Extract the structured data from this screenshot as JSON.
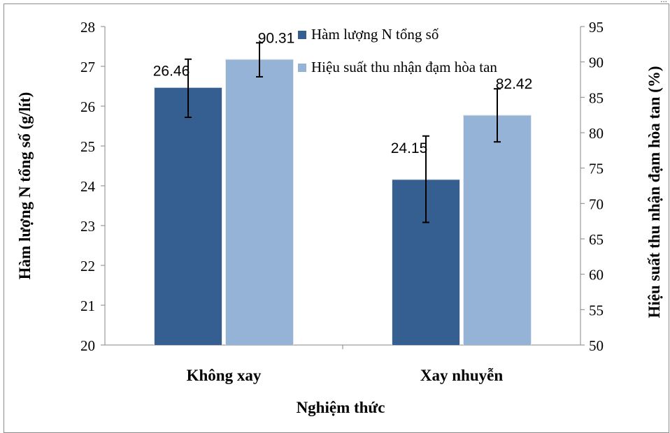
{
  "header_note": "...",
  "chart_data": {
    "type": "bar",
    "xlabel": "Nghiệm thức",
    "categories": [
      "Không xay",
      "Xay nhuyễn"
    ],
    "y_left": {
      "label": "Hàm lượng N tổng số (g/lít)",
      "lim": [
        20,
        28
      ],
      "ticks": [
        "20",
        "21",
        "22",
        "23",
        "24",
        "25",
        "26",
        "27",
        "28"
      ]
    },
    "y_right": {
      "label": "Hiệu suất thu nhận đạm hòa tan (%)",
      "lim": [
        50,
        95
      ],
      "ticks": [
        "50",
        "55",
        "60",
        "65",
        "70",
        "75",
        "80",
        "85",
        "90",
        "95"
      ]
    },
    "series": [
      {
        "name": "Hàm lượng N tổng số",
        "axis": "left",
        "color": "#365f91",
        "values": [
          26.46,
          24.15
        ],
        "value_labels": [
          "26.46",
          "24.15"
        ],
        "error_low": [
          25.72,
          23.08
        ],
        "error_high": [
          27.18,
          25.25
        ]
      },
      {
        "name": "Hiệu suất thu nhận đạm hòa tan",
        "axis": "right",
        "color": "#95b3d7",
        "values": [
          90.31,
          82.42
        ],
        "value_labels": [
          "90.31",
          "82.42"
        ],
        "error_low": [
          87.9,
          78.7
        ],
        "error_high": [
          92.7,
          86.2
        ]
      }
    ],
    "grid": false,
    "legend_position": "top-right"
  }
}
